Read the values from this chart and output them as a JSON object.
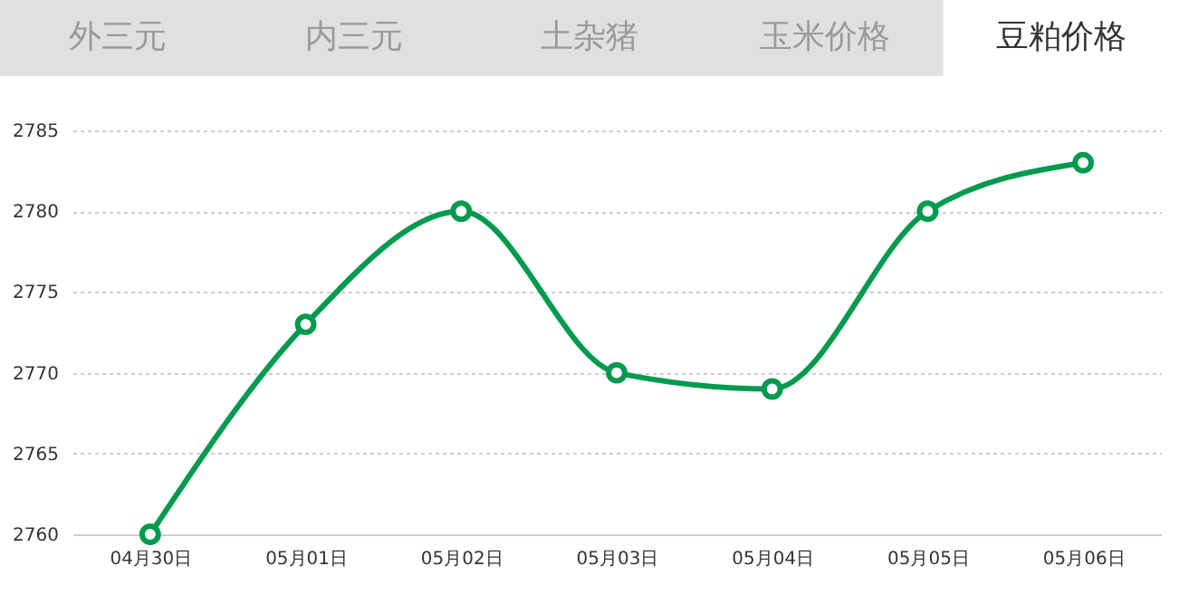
{
  "chart_data": {
    "type": "line",
    "annotations": [
      "外三元",
      "内三元",
      "土杂猪",
      "玉米价格",
      "豆粕价格"
    ],
    "categories": [
      "04月30日",
      "05月01日",
      "05月02日",
      "05月03日",
      "05月04日",
      "05月05日",
      "05月06日"
    ],
    "series": [
      {
        "color": "#009a4e",
        "values": [
          2760,
          2773,
          2780,
          2770,
          2769,
          2780,
          2783
        ]
      }
    ],
    "ylim": [
      2760,
      2785
    ],
    "yticks": [
      2760,
      2765,
      2770,
      2775,
      2780,
      2785
    ],
    "grid": "y",
    "marker": "circle",
    "line_style": "solid"
  }
}
